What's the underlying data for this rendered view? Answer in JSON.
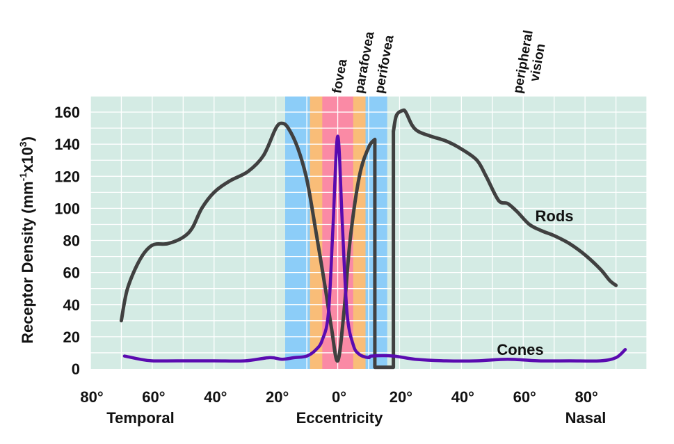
{
  "chart_data": {
    "type": "line",
    "ylabel_prefix": "Receptor Density (mm",
    "ylabel_exp1": "-1",
    "ylabel_mid": "x10",
    "ylabel_exp2": "3",
    "ylabel_suffix": ")",
    "xlabel_center": "Eccentricity",
    "xlabel_left": "Temporal",
    "xlabel_right": "Nasal",
    "ylim": [
      0,
      170
    ],
    "xlim": [
      -80,
      100
    ],
    "grid": true,
    "y_ticks": [
      0,
      20,
      40,
      60,
      80,
      100,
      120,
      140,
      160
    ],
    "x_ticks": [
      {
        "value": -80,
        "label": "80°"
      },
      {
        "value": -60,
        "label": "60°"
      },
      {
        "value": -40,
        "label": "40°"
      },
      {
        "value": -20,
        "label": "20°"
      },
      {
        "value": 0,
        "label": "0°"
      },
      {
        "value": 20,
        "label": "20°"
      },
      {
        "value": 40,
        "label": "40°"
      },
      {
        "value": 60,
        "label": "60°"
      },
      {
        "value": 80,
        "label": "80°"
      }
    ],
    "zones": [
      {
        "name": "fovea",
        "from": -5,
        "to": 5,
        "color": "#fa8aa5"
      },
      {
        "name": "parafovea",
        "from": -9,
        "to": 9,
        "color": "#f9bd78"
      },
      {
        "name": "perifovea",
        "from": -17,
        "to": 16,
        "color": "#8ccdf8"
      }
    ],
    "zone_labels": [
      {
        "lines": [
          "fovea"
        ]
      },
      {
        "lines": [
          "parafovea"
        ]
      },
      {
        "lines": [
          "perifovea"
        ]
      },
      {
        "lines": [
          "peripheral",
          "vision"
        ]
      }
    ],
    "blind_spot": {
      "from": 12,
      "to": 18,
      "level": 1
    },
    "series": [
      {
        "name": "Rods",
        "color": "#404040",
        "x": [
          -70,
          -68,
          -64,
          -60,
          -55,
          -50,
          -47,
          -44,
          -40,
          -35,
          -29,
          -24,
          -20,
          -18,
          -16,
          -13,
          -10,
          -7,
          -4,
          -2,
          0,
          2,
          4,
          7,
          10,
          12
        ],
        "y": [
          30,
          50,
          68,
          77,
          78,
          82,
          88,
          100,
          110,
          117,
          123,
          133,
          150,
          153,
          150,
          138,
          118,
          85,
          50,
          25,
          5,
          35,
          80,
          120,
          138,
          143
        ]
      },
      {
        "name": "Rods",
        "color": "#404040",
        "x": [
          18,
          19,
          21,
          22,
          24,
          26,
          30,
          35,
          40,
          45,
          48,
          52,
          55,
          58,
          62,
          66,
          70,
          75,
          80,
          85,
          88,
          90
        ],
        "y": [
          148,
          158,
          161,
          160,
          152,
          148,
          145,
          142,
          137,
          130,
          120,
          105,
          103,
          98,
          90,
          86,
          83,
          78,
          71,
          62,
          55,
          52
        ]
      },
      {
        "name": "Cones",
        "color": "#5a0bb0",
        "x": [
          -69,
          -64,
          -60,
          -52,
          -40,
          -30,
          -22,
          -18,
          -14,
          -10,
          -7,
          -5,
          -3,
          -1.5,
          0,
          1.5,
          3,
          5,
          7,
          10,
          11,
          18,
          25,
          35,
          45,
          55,
          65,
          75,
          85,
          90,
          93
        ],
        "y": [
          8,
          6,
          5,
          5,
          5,
          5,
          7,
          6,
          7,
          8,
          12,
          18,
          35,
          90,
          145,
          90,
          35,
          15,
          9,
          7,
          8,
          8,
          6,
          5,
          5,
          6,
          5,
          5,
          5,
          7,
          12
        ]
      }
    ]
  }
}
